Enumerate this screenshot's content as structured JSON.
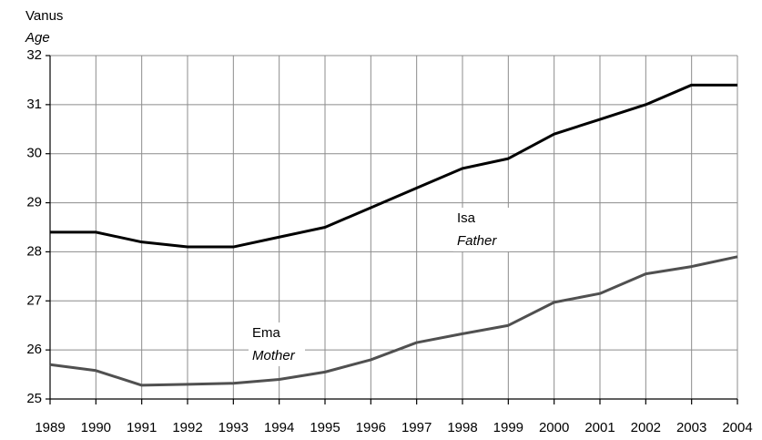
{
  "chart_data": {
    "type": "line",
    "y_label": "Vanus",
    "y_label_en": "Age",
    "x": [
      1989,
      1990,
      1991,
      1992,
      1993,
      1994,
      1995,
      1996,
      1997,
      1998,
      1999,
      2000,
      2001,
      2002,
      2003,
      2004
    ],
    "series": [
      {
        "name": "Isa",
        "name_en": "Father",
        "color": "#000000",
        "values": [
          28.4,
          28.4,
          28.2,
          28.1,
          28.1,
          28.3,
          28.5,
          28.9,
          29.3,
          29.7,
          29.9,
          30.4,
          30.7,
          31.0,
          31.4,
          31.4
        ]
      },
      {
        "name": "Ema",
        "name_en": "Mother",
        "color": "#505050",
        "values": [
          25.7,
          25.58,
          25.28,
          25.3,
          25.32,
          25.4,
          25.55,
          25.8,
          26.15,
          26.33,
          26.5,
          26.97,
          27.15,
          27.55,
          27.7,
          27.9
        ]
      }
    ],
    "xlim": [
      1989,
      2004
    ],
    "xticks": [
      1989,
      1990,
      1991,
      1992,
      1993,
      1994,
      1995,
      1996,
      1997,
      1998,
      1999,
      2000,
      2001,
      2002,
      2003,
      2004
    ],
    "ylim": [
      25,
      32
    ],
    "yticks": [
      25,
      26,
      27,
      28,
      29,
      30,
      31,
      32
    ],
    "grid": true
  }
}
